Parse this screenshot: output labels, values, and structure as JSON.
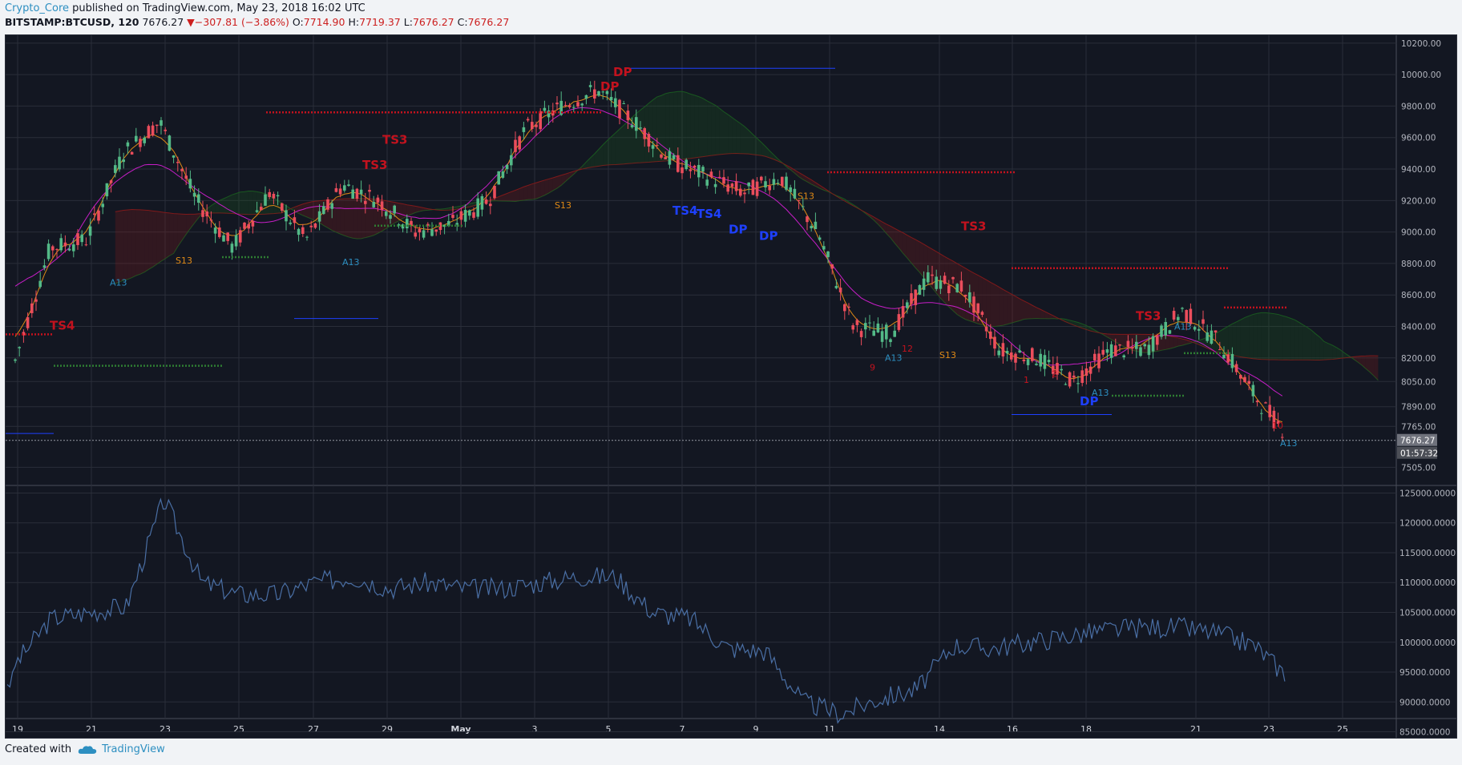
{
  "header": {
    "author": "Crypto_Core",
    "published_text": "published on TradingView.com, May 23, 2018 16:02 UTC",
    "symbol": "BITSTAMP:BTCUSD, 120",
    "last": "7676.27",
    "change": "−307.81 (−3.86%)",
    "open_label": "O:",
    "open": "7714.90",
    "high_label": "H:",
    "high": "7719.37",
    "low_label": "L:",
    "low": "7676.27",
    "close_label": "C:",
    "close": "7676.27"
  },
  "footer": {
    "created_with": "Created with",
    "brand": "TradingView"
  },
  "colors": {
    "background": "#131722",
    "grid": "#2a2e39",
    "up": "#53b987",
    "down": "#eb4d5c",
    "tenkan": "#c71ec7",
    "kijun": "#e08a16",
    "cloud_bull": "#1b5e20",
    "cloud_bear": "#8b1a1a",
    "signal_red": "#c3121e",
    "signal_blue": "#1e40ff",
    "signal_green": "#2e7d32",
    "volume_line": "#4a6fa5",
    "axis_text": "#b2b5be"
  },
  "chart_data": [
    {
      "type": "candlestick",
      "symbol": "BITSTAMP:BTCUSD",
      "interval": "120",
      "ylim": [
        7400,
        10250
      ],
      "y_ticks": [
        "10200.00",
        "10000.00",
        "9800.00",
        "9600.00",
        "9400.00",
        "9200.00",
        "9000.00",
        "8800.00",
        "8600.00",
        "8400.00",
        "8200.00",
        "8050.00",
        "7890.00",
        "7765.00",
        "7505.00"
      ],
      "x_ticks": [
        "19",
        "21",
        "23",
        "25",
        "27",
        "29",
        "May",
        "3",
        "5",
        "7",
        "9",
        "11",
        "14",
        "16",
        "18",
        "21",
        "23",
        "25"
      ],
      "last_price_label": "7676.27",
      "countdown_label": "01:57:32",
      "close_path": [
        [
          "19",
          8150
        ],
        [
          "21",
          8900
        ],
        [
          "23",
          8950
        ],
        [
          "24.5",
          9500
        ],
        [
          "25",
          9700
        ],
        [
          "25.5",
          9200
        ],
        [
          "26",
          8900
        ],
        [
          "27",
          9250
        ],
        [
          "28",
          8950
        ],
        [
          "29",
          9300
        ],
        [
          "30",
          9200
        ],
        [
          "May",
          9000
        ],
        [
          "2",
          9050
        ],
        [
          "3",
          9200
        ],
        [
          "4",
          9650
        ],
        [
          "5",
          9800
        ],
        [
          "5.5",
          9900
        ],
        [
          "6",
          9700
        ],
        [
          "7",
          9450
        ],
        [
          "8",
          9350
        ],
        [
          "9",
          9250
        ],
        [
          "10",
          9350
        ],
        [
          "11",
          9000
        ],
        [
          "12",
          8400
        ],
        [
          "13",
          8350
        ],
        [
          "14",
          8700
        ],
        [
          "15",
          8650
        ],
        [
          "16",
          8250
        ],
        [
          "17",
          8200
        ],
        [
          "18",
          8050
        ],
        [
          "19",
          8250
        ],
        [
          "20",
          8250
        ],
        [
          "21",
          8500
        ],
        [
          "22",
          8300
        ],
        [
          "23",
          7950
        ],
        [
          "23.5",
          7676.27
        ]
      ],
      "annotations": [
        {
          "text": "TS4",
          "color": "#c3121e"
        },
        {
          "text": "TS3",
          "color": "#c3121e"
        },
        {
          "text": "TS3",
          "color": "#c3121e"
        },
        {
          "text": "DP",
          "color": "#c3121e"
        },
        {
          "text": "DP",
          "color": "#c3121e"
        },
        {
          "text": "TS3",
          "color": "#c3121e"
        },
        {
          "text": "TS3",
          "color": "#c3121e"
        },
        {
          "text": "TS4",
          "color": "#1e40ff"
        },
        {
          "text": "TS4",
          "color": "#1e40ff"
        },
        {
          "text": "DP",
          "color": "#1e40ff"
        },
        {
          "text": "DP",
          "color": "#1e40ff"
        },
        {
          "text": "DP",
          "color": "#1e40ff"
        },
        {
          "text": "A13",
          "color": "#2d8fc1"
        },
        {
          "text": "A13",
          "color": "#2d8fc1"
        },
        {
          "text": "A13",
          "color": "#2d8fc1"
        },
        {
          "text": "A13",
          "color": "#2d8fc1"
        },
        {
          "text": "A13",
          "color": "#2d8fc1"
        },
        {
          "text": "A13",
          "color": "#2d8fc1"
        },
        {
          "text": "S13",
          "color": "#e08a16"
        },
        {
          "text": "S13",
          "color": "#e08a16"
        },
        {
          "text": "S13",
          "color": "#e08a16"
        },
        {
          "text": "S13",
          "color": "#e08a16"
        },
        {
          "text": "12",
          "color": "#c3121e"
        },
        {
          "text": "9",
          "color": "#c3121e"
        },
        {
          "text": "1",
          "color": "#c3121e"
        },
        {
          "text": "2",
          "color": "#c3121e"
        },
        {
          "text": "10",
          "color": "#c3121e"
        }
      ]
    },
    {
      "type": "line",
      "name": "",
      "ylim": [
        84000,
        126000
      ],
      "y_ticks": [
        "125000.0000",
        "120000.0000",
        "115000.0000",
        "110000.0000",
        "105000.0000",
        "100000.0000",
        "95000.0000",
        "90000.0000",
        "85000.0000"
      ],
      "path": [
        [
          "19",
          96000
        ],
        [
          "21",
          104000
        ],
        [
          "23",
          105000
        ],
        [
          "24",
          106000
        ],
        [
          "25",
          124000
        ],
        [
          "25.5",
          110000
        ],
        [
          "26",
          108000
        ],
        [
          "27",
          108000
        ],
        [
          "28",
          110000
        ],
        [
          "29",
          111000
        ],
        [
          "30",
          109000
        ],
        [
          "May",
          110000
        ],
        [
          "2",
          109000
        ],
        [
          "3",
          109000
        ],
        [
          "4",
          110000
        ],
        [
          "5",
          111000
        ],
        [
          "6",
          111000
        ],
        [
          "7",
          105000
        ],
        [
          "8",
          104000
        ],
        [
          "9",
          99000
        ],
        [
          "10",
          98500
        ],
        [
          "11",
          90000
        ],
        [
          "12",
          88000
        ],
        [
          "13",
          90500
        ],
        [
          "14",
          92000
        ],
        [
          "15",
          99500
        ],
        [
          "16",
          99000
        ],
        [
          "17",
          100000
        ],
        [
          "18",
          101000
        ],
        [
          "19",
          102000
        ],
        [
          "20",
          102500
        ],
        [
          "21",
          102500
        ],
        [
          "22",
          101500
        ],
        [
          "23",
          99500
        ],
        [
          "23.5",
          93500
        ]
      ]
    }
  ]
}
